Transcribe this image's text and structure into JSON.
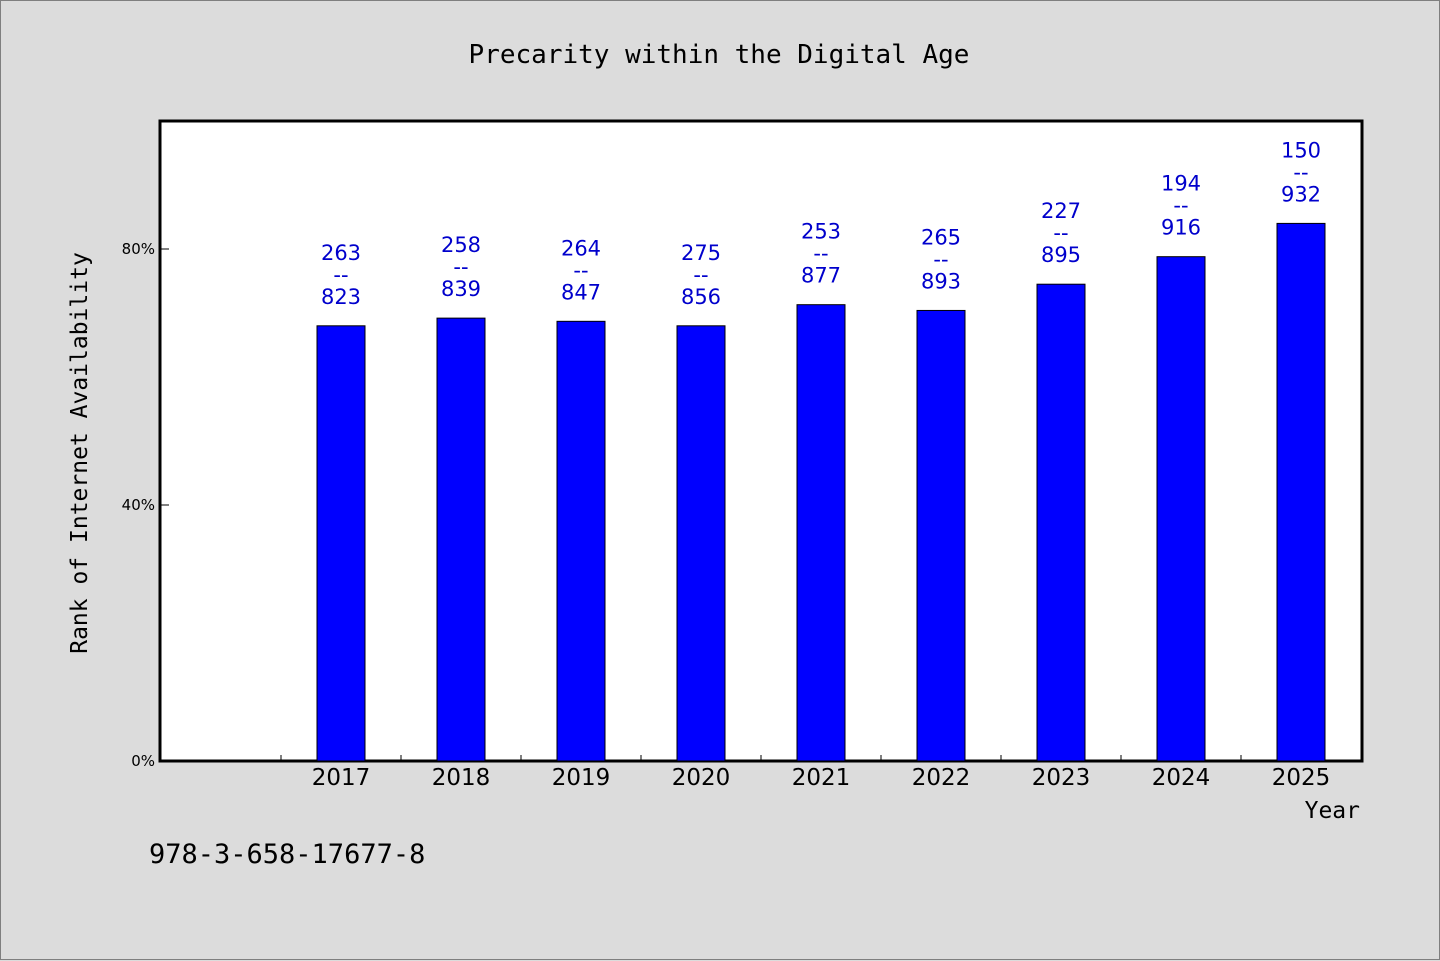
{
  "chart_data": {
    "type": "bar",
    "title": "Precarity within the Digital Age",
    "xlabel": "Year",
    "ylabel": "Rank of Internet Availability",
    "categories": [
      "2017",
      "2018",
      "2019",
      "2020",
      "2021",
      "2022",
      "2023",
      "2024",
      "2025"
    ],
    "values": [
      68.0,
      69.2,
      68.7,
      68.0,
      71.3,
      70.4,
      74.5,
      78.8,
      84.0
    ],
    "data_labels": [
      {
        "top": "263",
        "sep": "--",
        "bottom": "823"
      },
      {
        "top": "258",
        "sep": "--",
        "bottom": "839"
      },
      {
        "top": "264",
        "sep": "--",
        "bottom": "847"
      },
      {
        "top": "275",
        "sep": "--",
        "bottom": "856"
      },
      {
        "top": "253",
        "sep": "--",
        "bottom": "877"
      },
      {
        "top": "265",
        "sep": "--",
        "bottom": "893"
      },
      {
        "top": "227",
        "sep": "--",
        "bottom": "895"
      },
      {
        "top": "194",
        "sep": "--",
        "bottom": "916"
      },
      {
        "top": "150",
        "sep": "--",
        "bottom": "932"
      }
    ],
    "y_ticks": [
      {
        "value": 0,
        "label": "0%"
      },
      {
        "value": 40,
        "label": "40%"
      },
      {
        "value": 80,
        "label": "80%"
      }
    ],
    "ylim": [
      0,
      100
    ],
    "grid": false,
    "bar_color": "#0000ff",
    "label_color": "#0000cc"
  },
  "footer": {
    "isbn": "978-3-658-17677-8"
  }
}
